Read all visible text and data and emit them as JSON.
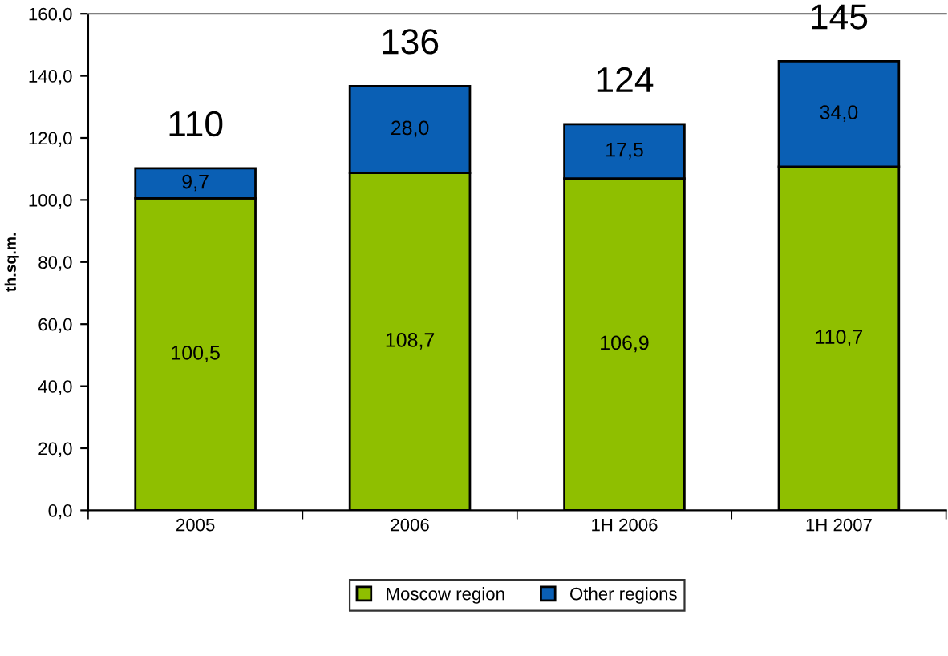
{
  "chart_data": {
    "type": "bar",
    "stacked": true,
    "ylabel": "th.sq.m.",
    "categories": [
      "2005",
      "2006",
      "1H 2006",
      "1H 2007"
    ],
    "series": [
      {
        "name": "Moscow region",
        "color": "#8fbf00",
        "values": [
          100.5,
          108.7,
          106.9,
          110.7
        ],
        "value_labels": [
          "100,5",
          "108,7",
          "106,9",
          "110,7"
        ]
      },
      {
        "name": "Other regions",
        "color": "#0a5fb4",
        "values": [
          9.7,
          28.0,
          17.5,
          34.0
        ],
        "value_labels": [
          "9,7",
          "28,0",
          "17,5",
          "34,0"
        ]
      }
    ],
    "totals": [
      "110",
      "136",
      "124",
      "145"
    ],
    "ylim": [
      0,
      160
    ],
    "yticks": [
      {
        "value": 0,
        "label": "0,0"
      },
      {
        "value": 20,
        "label": "20,0"
      },
      {
        "value": 40,
        "label": "40,0"
      },
      {
        "value": 60,
        "label": "60,0"
      },
      {
        "value": 80,
        "label": "80,0"
      },
      {
        "value": 100,
        "label": "100,0"
      },
      {
        "value": 120,
        "label": "120,0"
      },
      {
        "value": 140,
        "label": "140,0"
      },
      {
        "value": 160,
        "label": "160,0"
      }
    ],
    "grid": false,
    "legend": "bottom"
  }
}
